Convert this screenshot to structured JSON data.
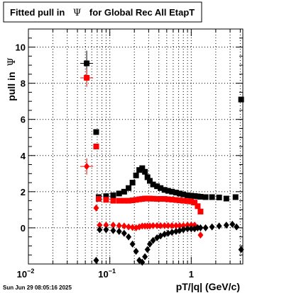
{
  "title": {
    "prefix": "Fitted pull in",
    "symbol": "Ψ",
    "suffix": "for Global Rec All EtapT"
  },
  "timestamp": "Sun Jun 29 08:05:16 2025",
  "chart_data": {
    "type": "scatter",
    "title": "Fitted pull in Ψ for Global Rec All EtapT",
    "xlabel": "pT/|q| (GeV/c)",
    "ylabel_prefix": "pull in",
    "ylabel_symbol": "Ψ",
    "xscale": "log",
    "xlim": [
      0.01,
      4.3
    ],
    "ylim": [
      -2.0,
      11.0
    ],
    "grid": true,
    "x_ticks": [
      {
        "value": 0.01,
        "base": "10",
        "exp": "−2"
      },
      {
        "value": 0.1,
        "base": "10",
        "exp": "−1"
      },
      {
        "value": 1,
        "base": "1",
        "exp": ""
      }
    ],
    "y_ticks": [
      "0",
      "2",
      "4",
      "6",
      "8",
      "10"
    ],
    "y_tick_values": [
      0,
      2,
      4,
      6,
      8,
      10
    ],
    "colors": {
      "black": "#000000",
      "red": "#ff0000"
    },
    "series": [
      {
        "color": "black",
        "marker": "square",
        "x": [
          0.052,
          0.068,
          0.073,
          0.09,
          0.11,
          0.13,
          0.15,
          0.17,
          0.19,
          0.21,
          0.23,
          0.25,
          0.27,
          0.29,
          0.31,
          0.34,
          0.38,
          0.42,
          0.47,
          0.52,
          0.58,
          0.65,
          0.72,
          0.8,
          0.9,
          1.0,
          1.1,
          1.2,
          1.3,
          1.5,
          1.8,
          2.2,
          2.7,
          3.5,
          4.1
        ],
        "y": [
          9.1,
          5.3,
          1.7,
          1.75,
          1.8,
          1.9,
          2.0,
          2.2,
          2.5,
          2.9,
          3.2,
          3.3,
          3.1,
          2.8,
          2.6,
          2.4,
          2.3,
          2.2,
          2.1,
          2.05,
          2.0,
          1.95,
          1.9,
          1.85,
          1.8,
          1.78,
          1.76,
          1.74,
          1.72,
          1.7,
          1.7,
          1.68,
          1.62,
          1.7,
          7.1
        ]
      },
      {
        "color": "red",
        "marker": "square",
        "x": [
          0.052,
          0.068,
          0.073,
          0.09,
          0.11,
          0.13,
          0.15,
          0.17,
          0.19,
          0.21,
          0.23,
          0.25,
          0.27,
          0.29,
          0.31,
          0.34,
          0.38,
          0.42,
          0.47,
          0.52,
          0.58,
          0.65,
          0.72,
          0.8,
          0.9,
          1.0,
          1.1,
          1.2,
          1.3
        ],
        "y": [
          8.3,
          4.5,
          1.6,
          1.55,
          1.5,
          1.5,
          1.5,
          1.5,
          1.52,
          1.55,
          1.58,
          1.6,
          1.62,
          1.62,
          1.62,
          1.61,
          1.6,
          1.6,
          1.6,
          1.58,
          1.56,
          1.54,
          1.52,
          1.5,
          1.48,
          1.46,
          1.4,
          1.2,
          0.9
        ]
      },
      {
        "color": "red",
        "marker": "diamond",
        "x": [
          0.052,
          0.068,
          0.075,
          0.09,
          0.11,
          0.13,
          0.15,
          0.17,
          0.19,
          0.21,
          0.23,
          0.25,
          0.27,
          0.29,
          0.31,
          0.34,
          0.38,
          0.42,
          0.47,
          0.52,
          0.58,
          0.65,
          0.72,
          0.8,
          0.9,
          1.0,
          1.1,
          1.2,
          1.3
        ],
        "y": [
          3.4,
          1.1,
          0.15,
          0.15,
          0.15,
          0.12,
          0.1,
          0.05,
          0.02,
          0.0,
          0.05,
          0.1,
          0.1,
          0.1,
          0.1,
          0.12,
          0.12,
          0.12,
          0.12,
          0.12,
          0.12,
          0.12,
          0.12,
          0.12,
          0.15,
          0.15,
          0.15,
          0.0,
          -0.4
        ]
      },
      {
        "color": "black",
        "marker": "diamond",
        "x": [
          0.068,
          0.075,
          0.09,
          0.11,
          0.13,
          0.15,
          0.17,
          0.19,
          0.21,
          0.23,
          0.25,
          0.27,
          0.29,
          0.31,
          0.34,
          0.38,
          0.42,
          0.47,
          0.52,
          0.58,
          0.65,
          0.72,
          0.8,
          0.9,
          1.0,
          1.1,
          1.2,
          1.3,
          1.5,
          1.8,
          2.2,
          2.7,
          3.2,
          3.6,
          4.1
        ],
        "y": [
          -1.8,
          -0.1,
          -0.1,
          -0.15,
          -0.2,
          -0.3,
          -0.5,
          -0.9,
          -1.3,
          -1.8,
          -1.9,
          -1.6,
          -1.2,
          -0.9,
          -0.7,
          -0.55,
          -0.45,
          -0.35,
          -0.3,
          -0.25,
          -0.2,
          -0.15,
          -0.1,
          -0.05,
          -0.05,
          -0.05,
          0.0,
          0.0,
          0.0,
          0.05,
          0.1,
          0.15,
          0.2,
          0.05,
          -1.2
        ]
      }
    ]
  }
}
